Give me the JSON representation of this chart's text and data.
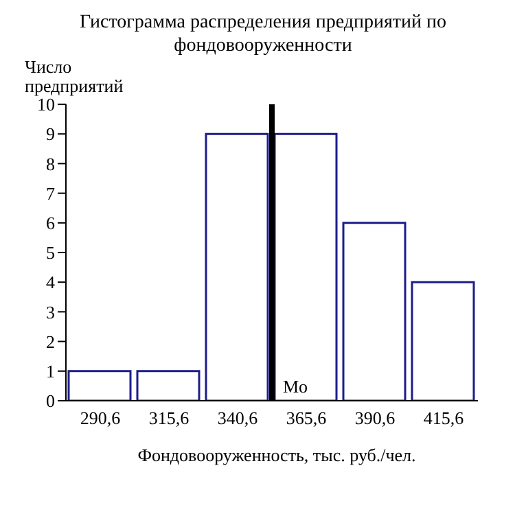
{
  "chart_data": {
    "type": "histogram",
    "title": "Гистограмма распределения предприятий по фондовооруженности",
    "xlabel": "Фондовооруженность, тыс. руб./чел.",
    "ylabel": "Число предприятий",
    "bins": [
      278.1,
      303.1,
      328.1,
      353.1,
      378.1,
      403.1,
      428.1
    ],
    "values": [
      1,
      1,
      9,
      9,
      6,
      4
    ],
    "color": "#1c1c8c",
    "xlim": [
      278.1,
      428.1
    ],
    "xticks": [
      {
        "value": 290.6,
        "label": "290,6"
      },
      {
        "value": 315.6,
        "label": "315,6"
      },
      {
        "value": 340.6,
        "label": "340,6"
      },
      {
        "value": 365.6,
        "label": "365,6"
      },
      {
        "value": 390.6,
        "label": "390,6"
      },
      {
        "value": 415.6,
        "label": "415,6"
      }
    ],
    "ylim": [
      0,
      10
    ],
    "yticks": [
      0,
      1,
      2,
      3,
      4,
      5,
      6,
      7,
      8,
      9,
      10
    ],
    "grid": false,
    "ref_lines": [
      {
        "axis": "x",
        "value": 353.1,
        "label": "Mo",
        "color": "#000000"
      }
    ]
  }
}
